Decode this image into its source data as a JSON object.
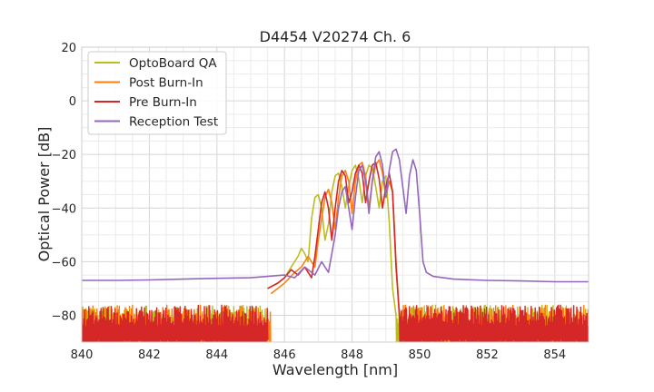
{
  "chart_data": {
    "type": "line",
    "title": "D4454 V20274 Ch. 6",
    "xlabel": "Wavelength [nm]",
    "ylabel": "Optical Power [dB]",
    "xlim": [
      840,
      855
    ],
    "ylim": [
      -90,
      20
    ],
    "xticks": [
      840,
      842,
      844,
      846,
      848,
      850,
      852,
      854
    ],
    "yticks": [
      20,
      0,
      -20,
      -40,
      -60,
      -80
    ],
    "grid": true,
    "legend_position": "top-left",
    "noise_floor": -80,
    "series": [
      {
        "name": "OptoBoard QA",
        "color": "#bcbd22",
        "signal_range": [
          845.5,
          849.3
        ],
        "points": [
          [
            845.5,
            -70
          ],
          [
            845.8,
            -68
          ],
          [
            846.0,
            -66
          ],
          [
            846.2,
            -62
          ],
          [
            846.4,
            -58
          ],
          [
            846.5,
            -55
          ],
          [
            846.6,
            -57
          ],
          [
            846.7,
            -60
          ],
          [
            846.8,
            -44
          ],
          [
            846.9,
            -36
          ],
          [
            847.0,
            -35
          ],
          [
            847.1,
            -40
          ],
          [
            847.2,
            -52
          ],
          [
            847.3,
            -46
          ],
          [
            847.4,
            -34
          ],
          [
            847.5,
            -28
          ],
          [
            847.6,
            -27
          ],
          [
            847.7,
            -32
          ],
          [
            847.8,
            -40
          ],
          [
            847.9,
            -32
          ],
          [
            848.0,
            -26
          ],
          [
            848.1,
            -24
          ],
          [
            848.2,
            -29
          ],
          [
            848.3,
            -38
          ],
          [
            848.4,
            -28
          ],
          [
            848.5,
            -24
          ],
          [
            848.6,
            -25
          ],
          [
            848.7,
            -32
          ],
          [
            848.8,
            -40
          ],
          [
            848.9,
            -30
          ],
          [
            849.0,
            -28
          ],
          [
            849.1,
            -45
          ],
          [
            849.2,
            -70
          ],
          [
            849.3,
            -80
          ]
        ]
      },
      {
        "name": "Post Burn-In",
        "color": "#ff7f0e",
        "signal_range": [
          845.6,
          849.4
        ],
        "points": [
          [
            845.6,
            -72
          ],
          [
            846.0,
            -68
          ],
          [
            846.3,
            -64
          ],
          [
            846.5,
            -62
          ],
          [
            846.7,
            -58
          ],
          [
            846.9,
            -62
          ],
          [
            847.0,
            -52
          ],
          [
            847.1,
            -44
          ],
          [
            847.2,
            -36
          ],
          [
            847.3,
            -33
          ],
          [
            847.4,
            -38
          ],
          [
            847.5,
            -48
          ],
          [
            847.6,
            -36
          ],
          [
            847.7,
            -28
          ],
          [
            847.8,
            -26
          ],
          [
            847.9,
            -30
          ],
          [
            848.0,
            -42
          ],
          [
            848.1,
            -30
          ],
          [
            848.2,
            -24
          ],
          [
            848.3,
            -23
          ],
          [
            848.4,
            -28
          ],
          [
            848.5,
            -40
          ],
          [
            848.6,
            -30
          ],
          [
            848.7,
            -24
          ],
          [
            848.8,
            -22
          ],
          [
            848.9,
            -27
          ],
          [
            849.0,
            -36
          ],
          [
            849.1,
            -30
          ],
          [
            849.2,
            -34
          ],
          [
            849.3,
            -60
          ],
          [
            849.4,
            -80
          ]
        ]
      },
      {
        "name": "Pre Burn-In",
        "color": "#d62728",
        "signal_range": [
          845.5,
          849.4
        ],
        "points": [
          [
            845.5,
            -70
          ],
          [
            845.8,
            -68
          ],
          [
            846.0,
            -66
          ],
          [
            846.2,
            -63
          ],
          [
            846.4,
            -65
          ],
          [
            846.6,
            -62
          ],
          [
            846.8,
            -66
          ],
          [
            846.9,
            -58
          ],
          [
            847.0,
            -48
          ],
          [
            847.1,
            -38
          ],
          [
            847.2,
            -34
          ],
          [
            847.3,
            -40
          ],
          [
            847.4,
            -52
          ],
          [
            847.5,
            -40
          ],
          [
            847.6,
            -30
          ],
          [
            847.7,
            -26
          ],
          [
            847.8,
            -28
          ],
          [
            847.9,
            -38
          ],
          [
            848.0,
            -34
          ],
          [
            848.1,
            -27
          ],
          [
            848.2,
            -24
          ],
          [
            848.3,
            -27
          ],
          [
            848.4,
            -38
          ],
          [
            848.5,
            -30
          ],
          [
            848.6,
            -24
          ],
          [
            848.7,
            -23
          ],
          [
            848.8,
            -29
          ],
          [
            848.9,
            -40
          ],
          [
            849.0,
            -32
          ],
          [
            849.1,
            -27
          ],
          [
            849.2,
            -34
          ],
          [
            849.3,
            -62
          ],
          [
            849.4,
            -80
          ]
        ]
      },
      {
        "name": "Reception Test",
        "color": "#9467bd",
        "signal_range": [
          840,
          855
        ],
        "points": [
          [
            840.0,
            -67
          ],
          [
            841.0,
            -67
          ],
          [
            842.0,
            -66.8
          ],
          [
            843.0,
            -66.5
          ],
          [
            844.0,
            -66.2
          ],
          [
            845.0,
            -66
          ],
          [
            845.5,
            -65.5
          ],
          [
            846.0,
            -65
          ],
          [
            846.3,
            -66
          ],
          [
            846.6,
            -62
          ],
          [
            846.9,
            -65
          ],
          [
            847.1,
            -60
          ],
          [
            847.3,
            -64
          ],
          [
            847.5,
            -50
          ],
          [
            847.6,
            -40
          ],
          [
            847.7,
            -34
          ],
          [
            847.8,
            -32
          ],
          [
            847.9,
            -40
          ],
          [
            848.0,
            -48
          ],
          [
            848.1,
            -36
          ],
          [
            848.2,
            -26
          ],
          [
            848.3,
            -24
          ],
          [
            848.4,
            -30
          ],
          [
            848.5,
            -42
          ],
          [
            848.6,
            -30
          ],
          [
            848.7,
            -21
          ],
          [
            848.8,
            -19
          ],
          [
            848.9,
            -24
          ],
          [
            849.0,
            -36
          ],
          [
            849.1,
            -26
          ],
          [
            849.2,
            -19
          ],
          [
            849.3,
            -18
          ],
          [
            849.4,
            -22
          ],
          [
            849.5,
            -32
          ],
          [
            849.6,
            -42
          ],
          [
            849.7,
            -28
          ],
          [
            849.8,
            -22
          ],
          [
            849.9,
            -26
          ],
          [
            850.0,
            -42
          ],
          [
            850.1,
            -60
          ],
          [
            850.2,
            -64
          ],
          [
            850.4,
            -65.5
          ],
          [
            851.0,
            -66.5
          ],
          [
            852.0,
            -67
          ],
          [
            853.0,
            -67.2
          ],
          [
            854.0,
            -67.5
          ],
          [
            855.0,
            -67.5
          ]
        ]
      }
    ]
  }
}
